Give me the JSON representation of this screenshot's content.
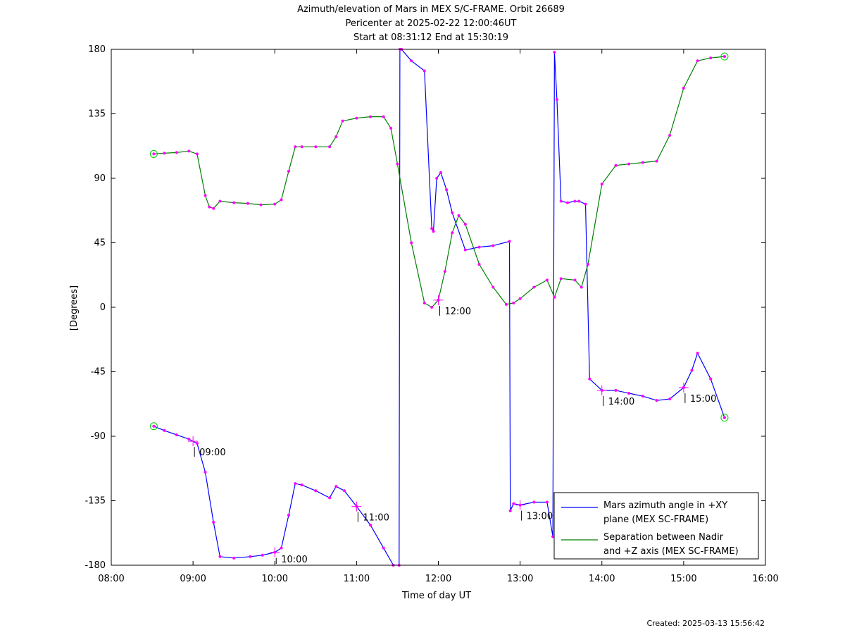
{
  "chart_data": {
    "type": "line",
    "title": "Azimuth/elevation of Mars in MEX S/C-FRAME.  Orbit 26689",
    "subtitle_1": "Pericenter at 2025-02-22 12:00:46UT",
    "subtitle_2": "Start at 08:31:12 End at 15:30:19",
    "xlabel": "Time of day UT",
    "ylabel": "[Degrees]",
    "xlim": [
      8,
      16
    ],
    "ylim": [
      -180,
      180
    ],
    "x_ticks": [
      8,
      9,
      10,
      11,
      12,
      13,
      14,
      15,
      16
    ],
    "x_tick_labels": [
      "08:00",
      "09:00",
      "10:00",
      "11:00",
      "12:00",
      "13:00",
      "14:00",
      "15:00",
      "16:00"
    ],
    "y_ticks": [
      -180,
      -135,
      -90,
      -45,
      0,
      45,
      90,
      135,
      180
    ],
    "y_tick_labels": [
      "-180",
      "-135",
      "-90",
      "-45",
      "0",
      "45",
      "90",
      "135",
      "180"
    ],
    "legend_position": "bottom-right",
    "series": [
      {
        "name_line1": "Mars azimuth angle in +XY",
        "name_line2": "plane (MEX SC-FRAME)",
        "color": "#0000ff",
        "x": [
          8.52,
          8.65,
          8.8,
          8.95,
          9.05,
          9.15,
          9.25,
          9.33,
          9.5,
          9.7,
          9.85,
          10.0,
          10.08,
          10.17,
          10.25,
          10.33,
          10.5,
          10.67,
          10.75,
          10.85,
          11.0,
          11.17,
          11.33,
          11.45,
          11.52,
          11.53,
          11.55,
          11.67,
          11.83,
          11.92,
          11.94,
          11.98,
          12.03,
          12.1,
          12.17,
          12.33,
          12.5,
          12.67,
          12.87,
          12.88,
          12.92,
          13.0,
          13.17,
          13.33,
          13.4,
          13.42,
          13.45,
          13.5,
          13.58,
          13.67,
          13.72,
          13.8,
          13.85,
          14.0,
          14.17,
          14.33,
          14.5,
          14.67,
          14.83,
          15.0,
          15.1,
          15.17,
          15.33,
          15.5
        ],
        "y": [
          -83,
          -86,
          -89,
          -92,
          -95,
          -115,
          -150,
          -174,
          -175,
          -174,
          -173,
          -171,
          -168,
          -145,
          -123,
          -124,
          -128,
          -133,
          -125,
          -128,
          -139,
          -152,
          -168,
          -180,
          -180,
          180,
          180,
          172,
          165,
          55,
          53,
          90,
          94,
          82,
          66,
          40,
          42,
          43,
          46,
          -142,
          -137,
          -138,
          -136,
          -136,
          -160,
          178,
          145,
          74,
          73,
          74,
          74,
          72,
          -50,
          -58,
          -58,
          -60,
          -62,
          -65,
          -64,
          -56,
          -44,
          -32,
          -50,
          -77
        ]
      },
      {
        "name_line1": "Separation between Nadir",
        "name_line2": "and +Z axis (MEX SC-FRAME)",
        "color": "#008000",
        "x": [
          8.52,
          8.65,
          8.8,
          8.95,
          9.05,
          9.15,
          9.2,
          9.25,
          9.33,
          9.5,
          9.67,
          9.83,
          10.0,
          10.08,
          10.17,
          10.25,
          10.33,
          10.5,
          10.67,
          10.75,
          10.83,
          11.0,
          11.17,
          11.33,
          11.42,
          11.5,
          11.67,
          11.83,
          11.92,
          12.0,
          12.08,
          12.17,
          12.25,
          12.33,
          12.5,
          12.67,
          12.83,
          12.92,
          13.0,
          13.17,
          13.33,
          13.42,
          13.5,
          13.67,
          13.75,
          13.83,
          14.0,
          14.17,
          14.33,
          14.5,
          14.67,
          14.83,
          15.0,
          15.17,
          15.33,
          15.5
        ],
        "y": [
          107,
          107.5,
          108,
          109,
          107,
          78,
          70,
          69,
          74,
          73,
          72.5,
          71.5,
          72,
          75,
          95,
          112,
          112,
          112,
          112,
          119,
          130,
          132,
          133,
          133,
          125,
          100,
          45,
          3,
          0,
          5,
          25,
          52,
          64,
          58,
          30,
          14,
          2,
          3,
          6,
          14,
          19,
          7,
          20,
          19,
          14,
          30,
          86,
          99,
          100,
          101,
          102,
          120,
          153,
          172,
          174,
          175
        ]
      }
    ],
    "time_markers": [
      {
        "x": 9.0,
        "label": "09:00",
        "series": 0
      },
      {
        "x": 10.0,
        "label": "10:00",
        "series": 0
      },
      {
        "x": 11.0,
        "label": "11:00",
        "series": 0
      },
      {
        "x": 12.0,
        "label": "12:00",
        "series": 1
      },
      {
        "x": 13.0,
        "label": "13:00",
        "series": 0
      },
      {
        "x": 14.0,
        "label": "14:00",
        "series": 0
      },
      {
        "x": 15.0,
        "label": "15:00",
        "series": 0
      }
    ],
    "marker_color": "#ff00ff",
    "endpoint_marker_color": "#00cc00",
    "footer": "Created: 2025-03-13 15:56:42"
  }
}
